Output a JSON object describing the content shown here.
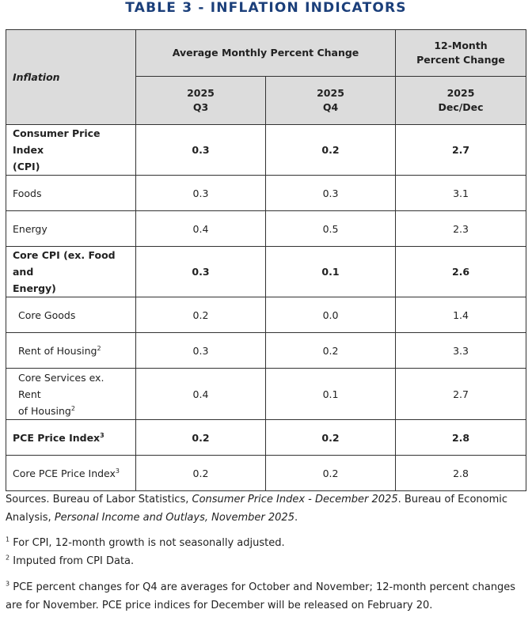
{
  "title": "TABLE 3 - INFLATION INDICATORS",
  "header": {
    "row_label": "Inflation",
    "group_monthly": "Average Monthly Percent Change",
    "group_12month_line1": "12-Month",
    "group_12month_line2": "Percent Change",
    "col_q3_year": "2025",
    "col_q3_period": "Q3",
    "col_q4_year": "2025",
    "col_q4_period": "Q4",
    "col_dec_year": "2025",
    "col_dec_period": "Dec/Dec"
  },
  "rows": [
    {
      "label": "Consumer Price Index",
      "label2": "(CPI)",
      "sup": "",
      "q3": "0.3",
      "q4": "0.2",
      "dec": "2.7"
    },
    {
      "label": "Foods",
      "label2": "",
      "sup": "",
      "q3": "0.3",
      "q4": "0.3",
      "dec": "3.1"
    },
    {
      "label": "Energy",
      "label2": "",
      "sup": "",
      "q3": "0.4",
      "q4": "0.5",
      "dec": "2.3"
    },
    {
      "label": "Core CPI (ex. Food and",
      "label2": "Energy)",
      "sup": "",
      "q3": "0.3",
      "q4": "0.1",
      "dec": "2.6"
    },
    {
      "label": "Core Goods",
      "label2": "",
      "sup": "",
      "q3": "0.2",
      "q4": "0.0",
      "dec": "1.4"
    },
    {
      "label": "Rent of Housing",
      "label2": "",
      "sup": "2",
      "q3": "0.3",
      "q4": "0.2",
      "dec": "3.3"
    },
    {
      "label": "Core Services ex. Rent",
      "label2": "of Housing",
      "sup": "2",
      "q3": "0.4",
      "q4": "0.1",
      "dec": "2.7"
    },
    {
      "label": "PCE Price Index",
      "label2": "",
      "sup": "3",
      "q3": "0.2",
      "q4": "0.2",
      "dec": "2.8"
    },
    {
      "label": "Core PCE Price Index",
      "label2": "",
      "sup": "3",
      "q3": "0.2",
      "q4": "0.2",
      "dec": "2.8"
    }
  ],
  "notes": {
    "sources_prefix": "Sources. Bureau of Labor Statistics, ",
    "sources_cpi": "Consumer Price Index - December 2025",
    "sources_mid": ". Bureau of Economic Analysis, ",
    "sources_pce": "Personal Income and Outlays, November 2025",
    "sources_end": ".",
    "fn1_marker": "1",
    "fn1": "For CPI, 12-month growth is not seasonally adjusted.",
    "fn2_marker": "2",
    "fn2": "Imputed from CPI Data.",
    "fn3_marker": "3",
    "fn3": "PCE percent changes for Q4 are averages for October and November; 12-month percent changes are for November. PCE price indices for December will be released on February 20."
  }
}
